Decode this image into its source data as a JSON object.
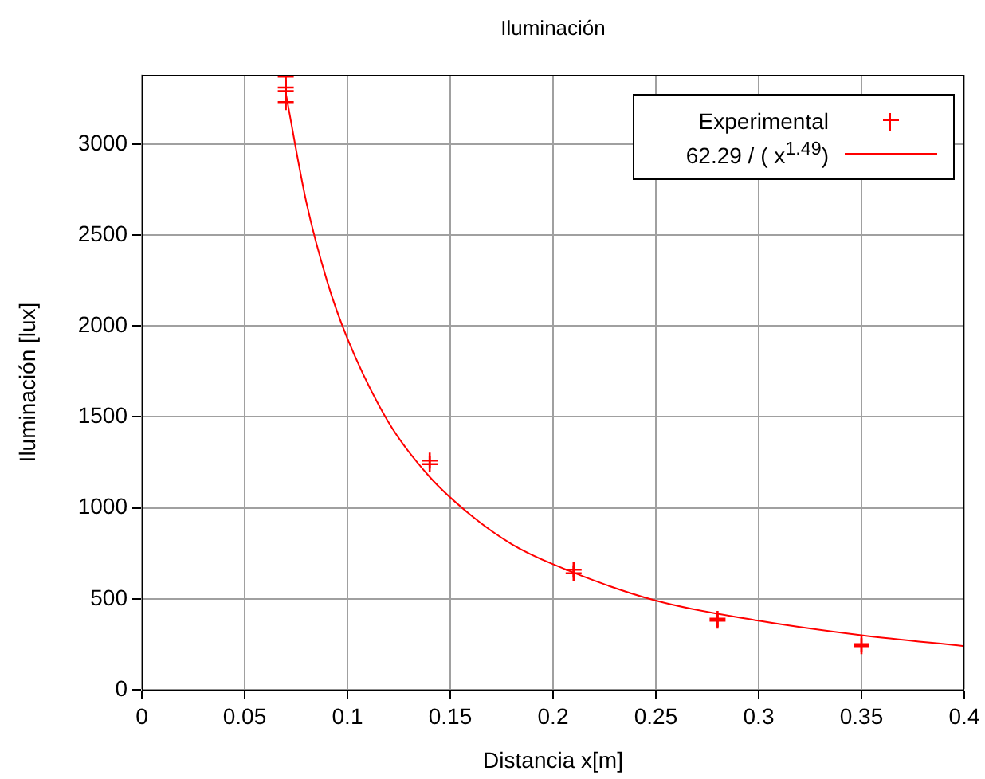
{
  "chart_data": {
    "type": "scatter",
    "title": "Iluminación",
    "xlabel": "Distancia x[m]",
    "ylabel": "Iluminación [lux]",
    "xlim": [
      0,
      0.4
    ],
    "xticks": [
      0,
      0.05,
      0.1,
      0.15,
      0.2,
      0.25,
      0.3,
      0.35,
      0.4
    ],
    "ylim": [
      0,
      3380
    ],
    "yticks": [
      0,
      500,
      1000,
      1500,
      2000,
      2500,
      3000
    ],
    "grid": true,
    "legend": "top right",
    "series": [
      {
        "name": "Experimental",
        "marker": "cross",
        "color": "#ff0000",
        "x": [
          0.07,
          0.07,
          0.07,
          0.07,
          0.14,
          0.14,
          0.21,
          0.21,
          0.28,
          0.28,
          0.35,
          0.35
        ],
        "values": [
          3370,
          3310,
          3290,
          3230,
          1260,
          1240,
          660,
          640,
          390,
          380,
          250,
          240
        ]
      },
      {
        "name": "62.29 / ( x$^{1.49}$)",
        "type": "line",
        "marker": "none",
        "color": "#ff0000",
        "x": [
          0.07,
          0.08,
          0.09,
          0.1,
          0.12,
          0.14,
          0.16,
          0.18,
          0.2,
          0.25,
          0.3,
          0.35,
          0.4
        ],
        "values": [
          3280,
          2680,
          2250,
          1930,
          1470,
          1170,
          960,
          800,
          690,
          490,
          380,
          300,
          240
        ]
      }
    ]
  }
}
